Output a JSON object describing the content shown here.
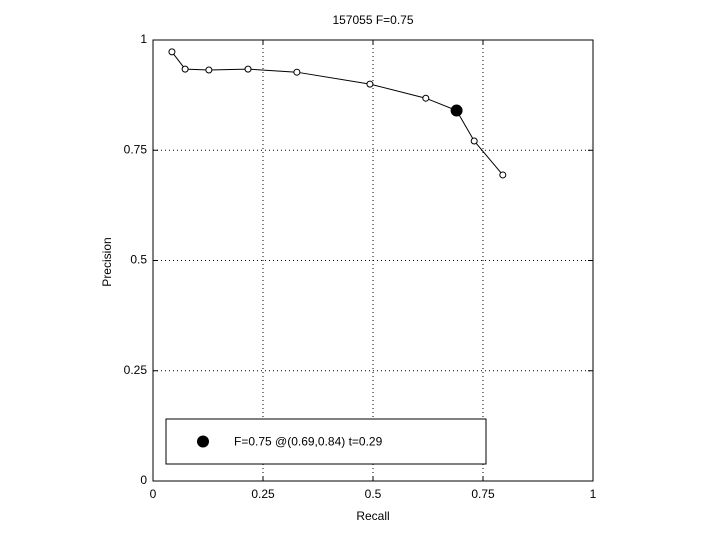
{
  "chart_data": {
    "type": "line",
    "title": "157055 F=0.75",
    "xlabel": "Recall",
    "ylabel": "Precision",
    "xlim": [
      0,
      1
    ],
    "ylim": [
      0,
      1
    ],
    "xticks": [
      0,
      0.25,
      0.5,
      0.75,
      1
    ],
    "yticks": [
      0,
      0.25,
      0.5,
      0.75,
      1
    ],
    "grid": true,
    "legend": "lower left",
    "series": [
      {
        "color": "#000000",
        "marker": "small-circle",
        "x": [
          0.043,
          0.073,
          0.127,
          0.216,
          0.327,
          0.493,
          0.62,
          0.69,
          0.73,
          0.795
        ],
        "values": [
          0.973,
          0.934,
          0.932,
          0.934,
          0.927,
          0.9,
          0.868,
          0.84,
          0.771,
          0.694
        ]
      },
      {
        "name": "F=0.75 @(0.69,0.84) t=0.29",
        "color": "#000000",
        "marker": "large-dot",
        "x": [
          0.69
        ],
        "values": [
          0.84
        ]
      }
    ]
  }
}
